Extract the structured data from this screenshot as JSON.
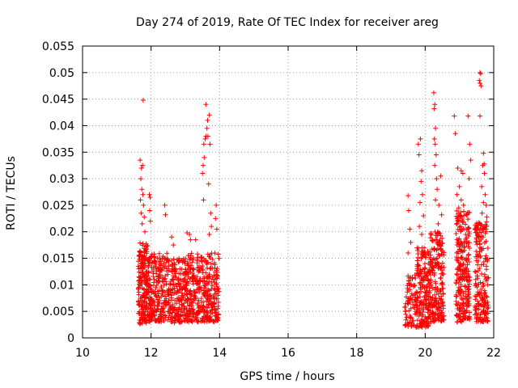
{
  "chart_data": {
    "type": "scatter",
    "title": "Day 274 of 2019, Rate Of TEC Index for receiver areg",
    "xlabel": "GPS time / hours",
    "ylabel": "ROTI / TECUs",
    "xlim": [
      10,
      22
    ],
    "ylim": [
      0,
      0.055
    ],
    "xticks": [
      10,
      12,
      14,
      16,
      18,
      20,
      22
    ],
    "xtick_labels": [
      "10",
      "12",
      "14",
      "16",
      "18",
      "20",
      "22"
    ],
    "yticks": [
      0,
      0.005,
      0.01,
      0.015,
      0.02,
      0.025,
      0.03,
      0.035,
      0.04,
      0.045,
      0.05,
      0.055
    ],
    "ytick_labels": [
      "0",
      "0.005",
      "0.01",
      "0.015",
      "0.02",
      "0.025",
      "0.03",
      "0.035",
      "0.04",
      "0.045",
      "0.05",
      "0.055"
    ],
    "grid": true,
    "marker": "+",
    "series": [
      {
        "name": "ROTI",
        "color": "#ff0000",
        "clusters": [
          {
            "x": [
              11.62,
              11.9
            ],
            "y": [
              0.0025,
              0.018
            ],
            "n": 200
          },
          {
            "x": [
              11.9,
              12.55
            ],
            "y": [
              0.003,
              0.016
            ],
            "n": 260
          },
          {
            "x": [
              12.55,
              13.05
            ],
            "y": [
              0.0028,
              0.015
            ],
            "n": 200
          },
          {
            "x": [
              13.05,
              13.55
            ],
            "y": [
              0.003,
              0.016
            ],
            "n": 200
          },
          {
            "x": [
              13.55,
              13.98
            ],
            "y": [
              0.003,
              0.016
            ],
            "n": 170
          },
          {
            "x": [
              19.4,
              19.75
            ],
            "y": [
              0.002,
              0.012
            ],
            "n": 80
          },
          {
            "x": [
              19.75,
              20.15
            ],
            "y": [
              0.002,
              0.017
            ],
            "n": 200
          },
          {
            "x": [
              20.15,
              20.55
            ],
            "y": [
              0.003,
              0.02
            ],
            "n": 200
          },
          {
            "x": [
              20.9,
              21.3
            ],
            "y": [
              0.003,
              0.024
            ],
            "n": 260
          },
          {
            "x": [
              21.45,
              21.85
            ],
            "y": [
              0.003,
              0.022
            ],
            "n": 200
          }
        ],
        "points": [
          [
            11.68,
            0.0335
          ],
          [
            11.72,
            0.032
          ],
          [
            11.75,
            0.0325
          ],
          [
            11.7,
            0.03
          ],
          [
            11.73,
            0.028
          ],
          [
            11.76,
            0.027
          ],
          [
            11.69,
            0.026
          ],
          [
            11.78,
            0.025
          ],
          [
            11.71,
            0.0235
          ],
          [
            11.8,
            0.0228
          ],
          [
            11.74,
            0.0215
          ],
          [
            11.82,
            0.02
          ],
          [
            11.77,
            0.0448
          ],
          [
            11.95,
            0.027
          ],
          [
            11.97,
            0.0265
          ],
          [
            11.96,
            0.024
          ],
          [
            11.98,
            0.022
          ],
          [
            12.4,
            0.025
          ],
          [
            12.42,
            0.0232
          ],
          [
            12.6,
            0.019
          ],
          [
            12.65,
            0.0175
          ],
          [
            13.05,
            0.0198
          ],
          [
            13.12,
            0.0195
          ],
          [
            13.15,
            0.0185
          ],
          [
            13.3,
            0.0185
          ],
          [
            13.5,
            0.031
          ],
          [
            13.52,
            0.0325
          ],
          [
            13.55,
            0.034
          ],
          [
            13.54,
            0.0365
          ],
          [
            13.58,
            0.0375
          ],
          [
            13.6,
            0.038
          ],
          [
            13.63,
            0.0395
          ],
          [
            13.65,
            0.041
          ],
          [
            13.7,
            0.042
          ],
          [
            13.6,
            0.044
          ],
          [
            13.66,
            0.038
          ],
          [
            13.72,
            0.0365
          ],
          [
            13.53,
            0.026
          ],
          [
            13.68,
            0.029
          ],
          [
            13.74,
            0.0235
          ],
          [
            13.76,
            0.021
          ],
          [
            13.7,
            0.0195
          ],
          [
            13.9,
            0.025
          ],
          [
            13.88,
            0.0225
          ],
          [
            13.92,
            0.0205
          ],
          [
            19.5,
            0.0268
          ],
          [
            19.52,
            0.024
          ],
          [
            19.55,
            0.0205
          ],
          [
            19.58,
            0.018
          ],
          [
            19.5,
            0.016
          ],
          [
            19.8,
            0.0365
          ],
          [
            19.82,
            0.0345
          ],
          [
            19.86,
            0.0375
          ],
          [
            19.9,
            0.0315
          ],
          [
            19.88,
            0.0295
          ],
          [
            19.92,
            0.027
          ],
          [
            19.85,
            0.0255
          ],
          [
            19.95,
            0.023
          ],
          [
            19.83,
            0.021
          ],
          [
            19.9,
            0.0195
          ],
          [
            20.25,
            0.0462
          ],
          [
            20.28,
            0.044
          ],
          [
            20.26,
            0.0432
          ],
          [
            20.3,
            0.0395
          ],
          [
            20.27,
            0.0375
          ],
          [
            20.29,
            0.0365
          ],
          [
            20.32,
            0.0345
          ],
          [
            20.28,
            0.0325
          ],
          [
            20.33,
            0.03
          ],
          [
            20.35,
            0.028
          ],
          [
            20.3,
            0.026
          ],
          [
            20.45,
            0.0305
          ],
          [
            20.4,
            0.025
          ],
          [
            20.48,
            0.0232
          ],
          [
            20.38,
            0.0215
          ],
          [
            20.85,
            0.0418
          ],
          [
            20.88,
            0.0385
          ],
          [
            20.95,
            0.032
          ],
          [
            21.05,
            0.0315
          ],
          [
            21.1,
            0.031
          ],
          [
            21.0,
            0.0285
          ],
          [
            20.93,
            0.027
          ],
          [
            21.05,
            0.026
          ],
          [
            21.12,
            0.025
          ],
          [
            20.98,
            0.0245
          ],
          [
            21.25,
            0.0418
          ],
          [
            21.3,
            0.0365
          ],
          [
            21.33,
            0.0335
          ],
          [
            21.28,
            0.03
          ],
          [
            21.6,
            0.05
          ],
          [
            21.62,
            0.0498
          ],
          [
            21.58,
            0.0485
          ],
          [
            21.6,
            0.048
          ],
          [
            21.63,
            0.0475
          ],
          [
            21.6,
            0.0418
          ],
          [
            21.7,
            0.0348
          ],
          [
            21.72,
            0.0328
          ],
          [
            21.68,
            0.0325
          ],
          [
            21.73,
            0.031
          ],
          [
            21.65,
            0.0285
          ],
          [
            21.75,
            0.027
          ],
          [
            21.7,
            0.0255
          ],
          [
            21.78,
            0.025
          ],
          [
            21.66,
            0.0235
          ],
          [
            21.8,
            0.0228
          ]
        ]
      }
    ]
  }
}
